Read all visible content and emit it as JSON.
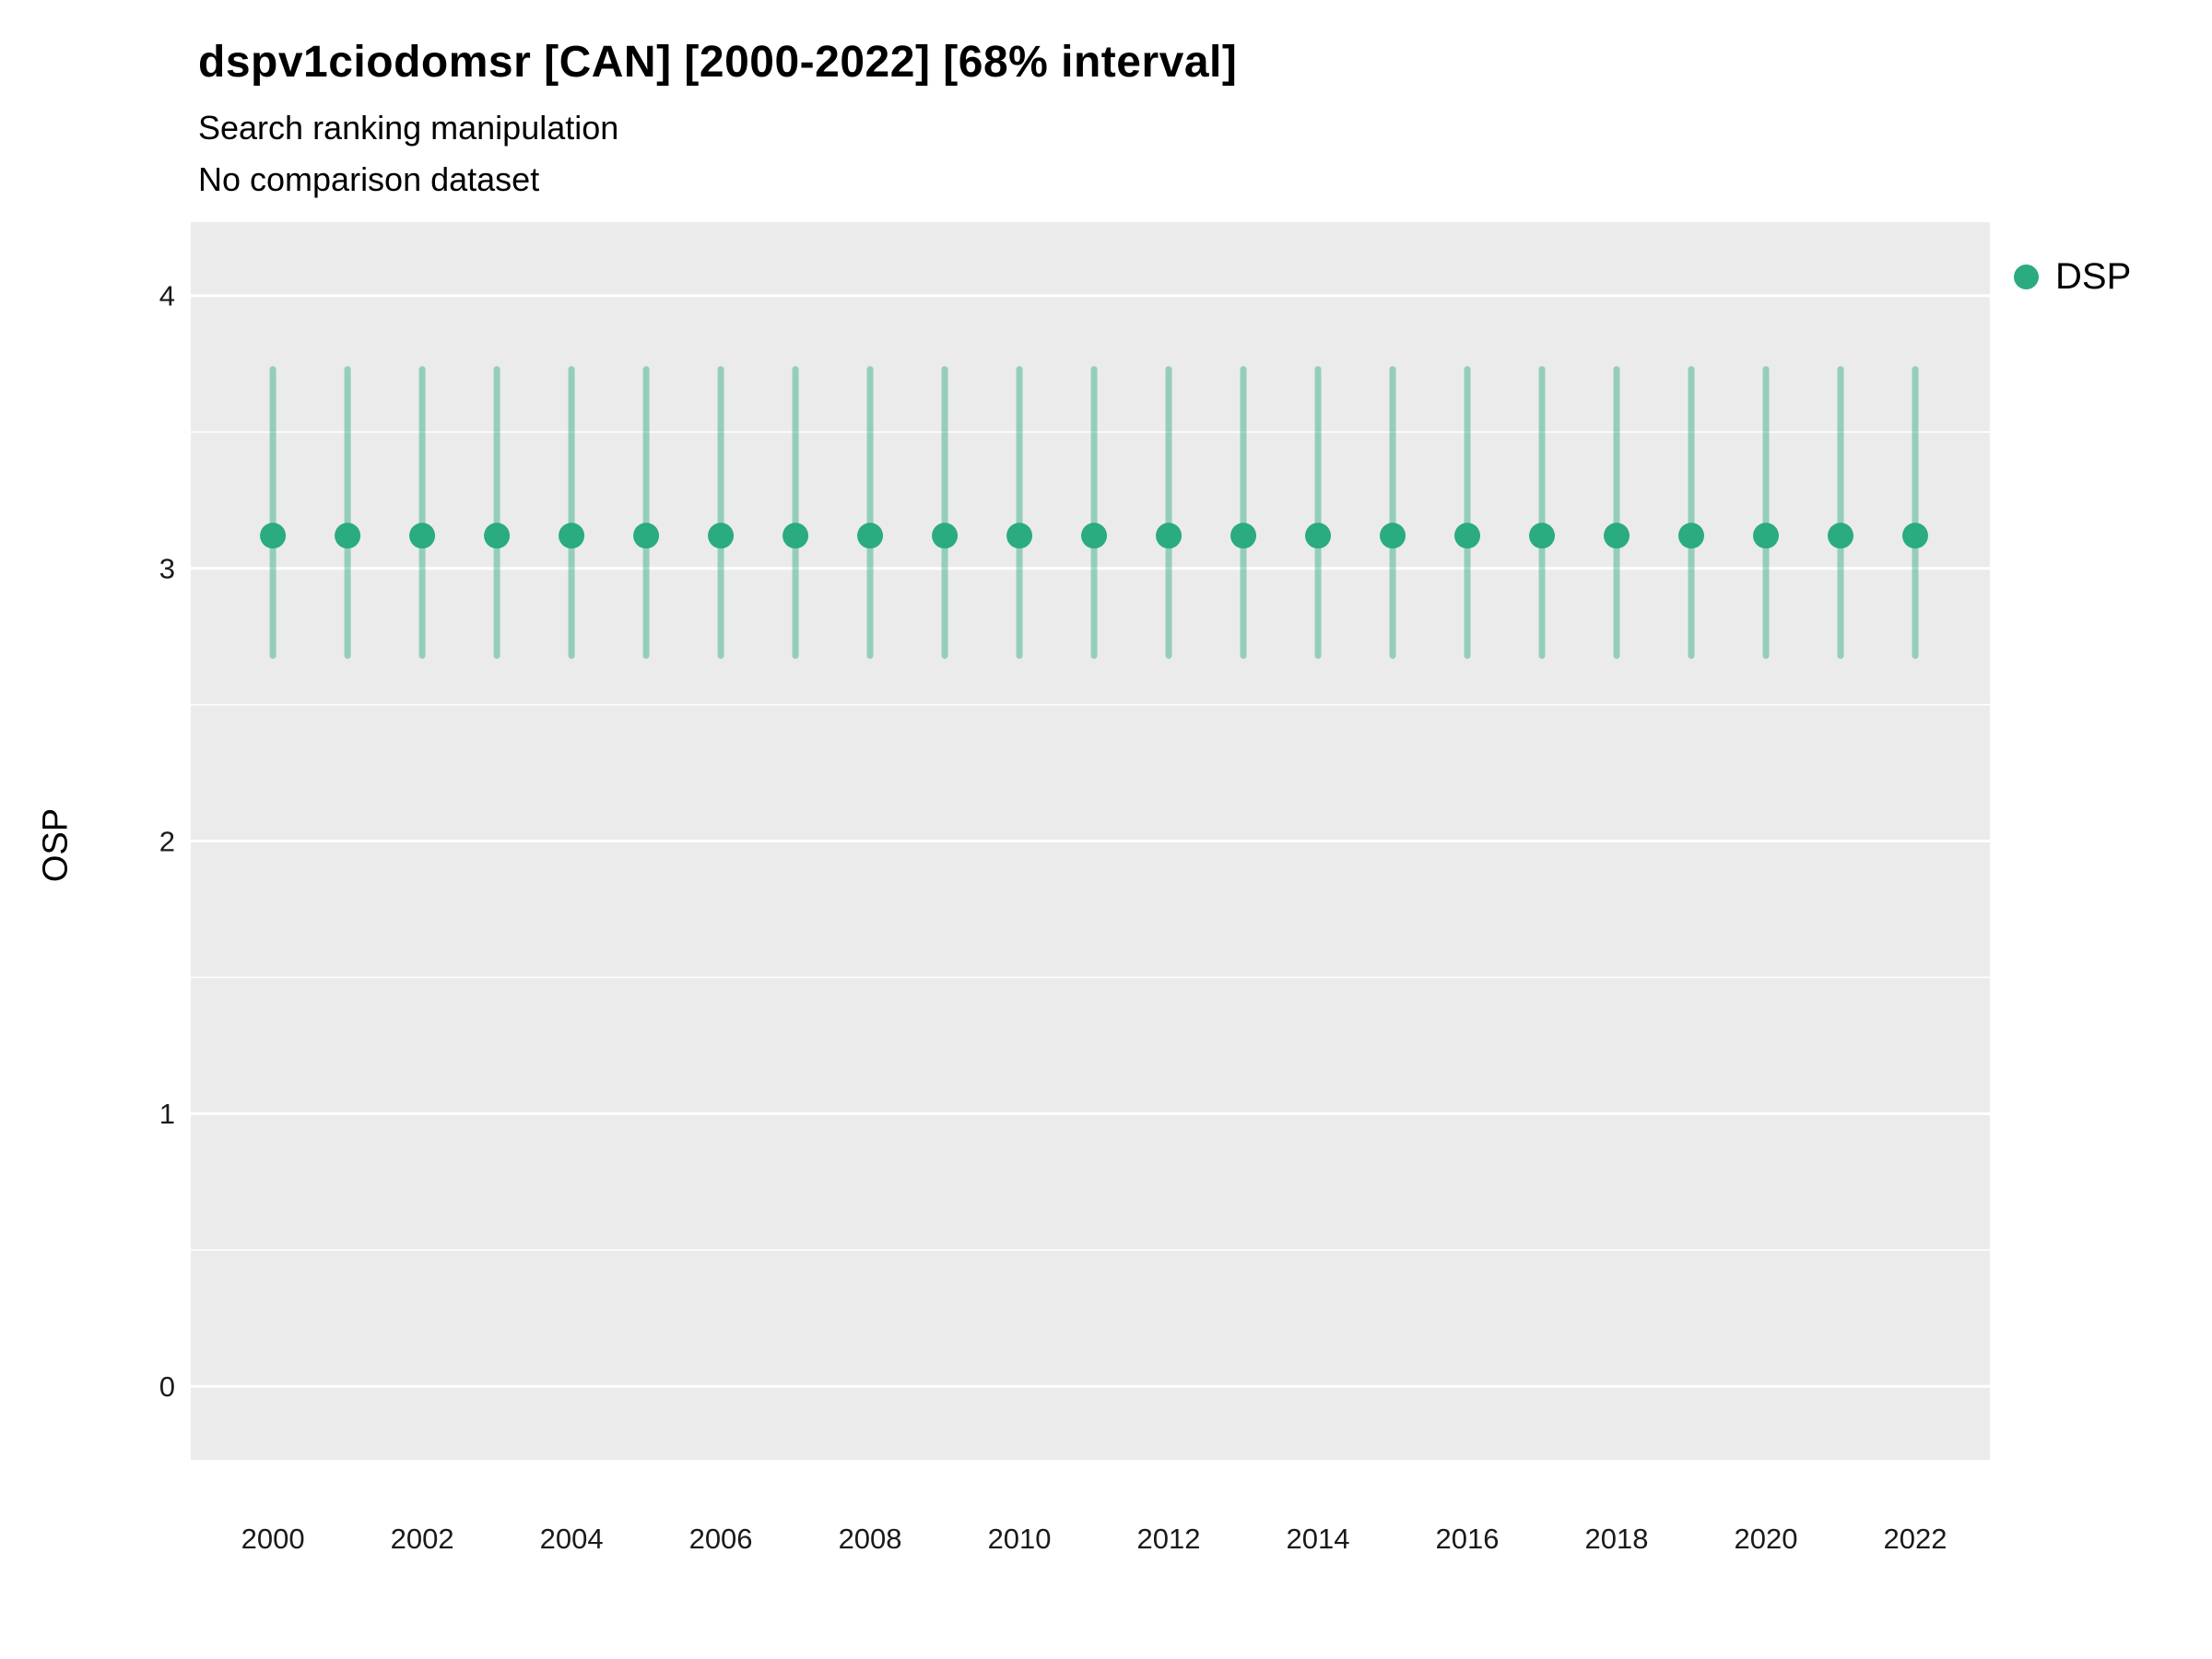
{
  "header": {
    "title": "dspv1ciodomsr [CAN] [2000-2022] [68% interval]",
    "subtitle1": "Search ranking manipulation",
    "subtitle2": "No comparison dataset"
  },
  "legend": {
    "items": [
      {
        "label": "DSP",
        "color": "#2aab80"
      }
    ]
  },
  "chart_data": {
    "type": "scatter",
    "title": "dspv1ciodomsr [CAN] [2000-2022] [68% interval]",
    "subtitle": "Search ranking manipulation / No comparison dataset",
    "xlabel": "",
    "ylabel": "OSP",
    "interval_label": "68% interval",
    "plot_bg": "#ebebeb",
    "grid": true,
    "legend_position": "right",
    "xlim": [
      1998.9,
      2023.0
    ],
    "ylim": [
      -0.27,
      4.27
    ],
    "xticks": [
      2000,
      2002,
      2004,
      2006,
      2008,
      2010,
      2012,
      2014,
      2016,
      2018,
      2020,
      2022
    ],
    "yticks": [
      0,
      1,
      2,
      3,
      4
    ],
    "series": [
      {
        "name": "DSP",
        "color": "#2aab80",
        "errorbar_opacity": 0.45,
        "x": [
          2000,
          2001,
          2002,
          2003,
          2004,
          2005,
          2006,
          2007,
          2008,
          2009,
          2010,
          2011,
          2012,
          2013,
          2014,
          2015,
          2016,
          2017,
          2018,
          2019,
          2020,
          2021,
          2022
        ],
        "y": [
          3.12,
          3.12,
          3.12,
          3.12,
          3.12,
          3.12,
          3.12,
          3.12,
          3.12,
          3.12,
          3.12,
          3.12,
          3.12,
          3.12,
          3.12,
          3.12,
          3.12,
          3.12,
          3.12,
          3.12,
          3.12,
          3.12,
          3.12
        ],
        "y_low": [
          2.68,
          2.68,
          2.68,
          2.68,
          2.68,
          2.68,
          2.68,
          2.68,
          2.68,
          2.68,
          2.68,
          2.68,
          2.68,
          2.68,
          2.68,
          2.68,
          2.68,
          2.68,
          2.68,
          2.68,
          2.68,
          2.68,
          2.68
        ],
        "y_high": [
          3.73,
          3.73,
          3.73,
          3.73,
          3.73,
          3.73,
          3.73,
          3.73,
          3.73,
          3.73,
          3.73,
          3.73,
          3.73,
          3.73,
          3.73,
          3.73,
          3.73,
          3.73,
          3.73,
          3.73,
          3.73,
          3.73,
          3.73
        ]
      }
    ]
  }
}
